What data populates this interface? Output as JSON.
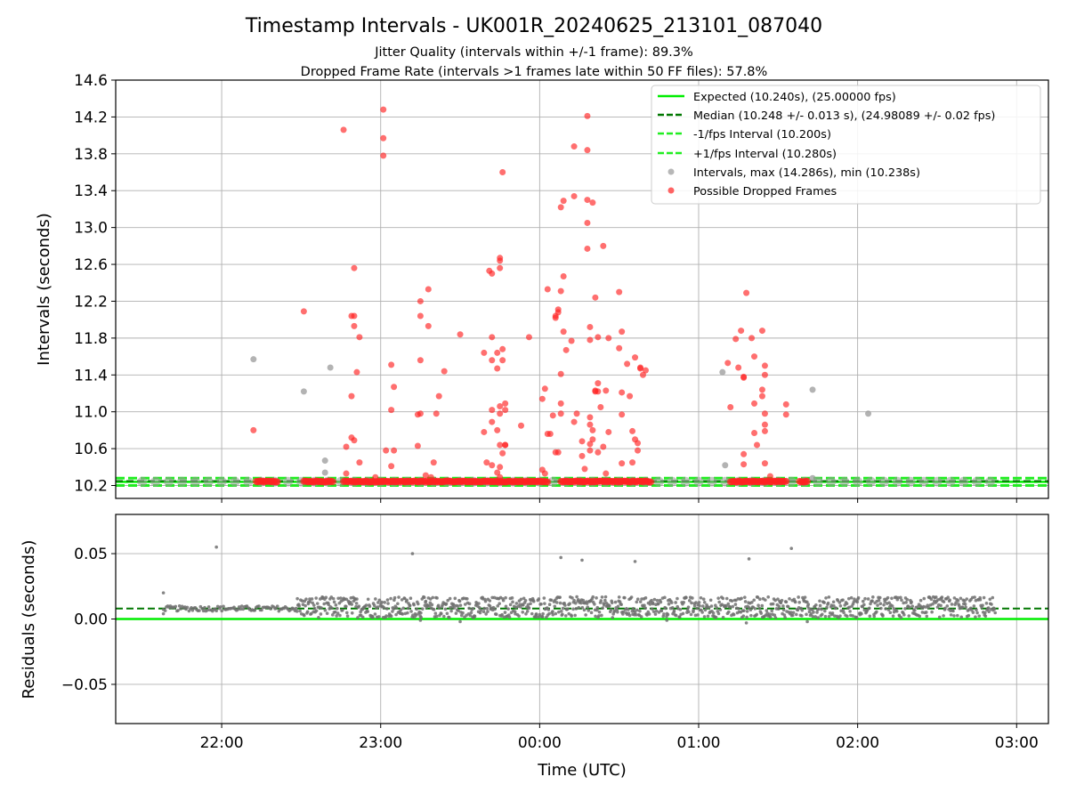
{
  "figure": {
    "title": "Timestamp Intervals - UK001R_20240625_213101_087040",
    "subtitle_jitter": "Jitter Quality (intervals within +/-1 frame): 89.3%",
    "subtitle_dropped": "Dropped Frame Rate (intervals >1 frames late within 50 FF files): 57.8%"
  },
  "colors": {
    "expected": "#00ee00",
    "median": "#007700",
    "fps_interval": "#22ee22",
    "intervals": "#999999",
    "dropped": "#ff2222",
    "residuals": "#707070",
    "grid": "#b0b0b0"
  },
  "chart_data": [
    {
      "type": "scatter",
      "ylabel": "Intervals (seconds)",
      "xlabel": "",
      "grid": true,
      "legend_placement": "top-right",
      "x_range": [
        "21:20",
        "03:12"
      ],
      "ylim": [
        10.06,
        14.6
      ],
      "yticks": [
        "10.2",
        "10.6",
        "11.0",
        "11.4",
        "11.8",
        "12.2",
        "12.6",
        "13.0",
        "13.4",
        "13.8",
        "14.2",
        "14.6"
      ],
      "legend": [
        {
          "key": "expected",
          "label": "Expected (10.240s), (25.00000 fps)",
          "style": "solid",
          "color": "#00ee00"
        },
        {
          "key": "median",
          "label": "Median (10.248 +/- 0.013 s), (24.98089 +/- 0.02 fps)",
          "style": "dashed",
          "color": "#007700"
        },
        {
          "key": "minus",
          "label": "-1/fps Interval (10.200s)",
          "style": "dashed",
          "color": "#22ee22"
        },
        {
          "key": "plus",
          "label": "+1/fps Interval (10.280s)",
          "style": "dashed",
          "color": "#22ee22"
        },
        {
          "key": "intervals",
          "label": "Intervals, max (14.286s), min (10.238s)",
          "style": "marker",
          "color": "#999999"
        },
        {
          "key": "dropped",
          "label": "Possible Dropped Frames",
          "style": "marker",
          "color": "#ff2222"
        }
      ],
      "lines": {
        "expected": 10.24,
        "median": 10.248,
        "minus": 10.2,
        "plus": 10.28
      },
      "series": [
        {
          "name": "Intervals, max (14.286s), min (10.238s)",
          "points": [
            [
              "22:12",
              11.57
            ],
            [
              "22:31",
              11.22
            ],
            [
              "22:39",
              10.47
            ],
            [
              "22:39",
              10.34
            ],
            [
              "22:41",
              11.48
            ],
            [
              "01:09",
              11.43
            ],
            [
              "01:10",
              10.42
            ],
            [
              "01:43",
              11.24
            ],
            [
              "01:43",
              10.28
            ],
            [
              "02:04",
              10.98
            ]
          ],
          "baseline": {
            "from": "21:30",
            "to": "02:53",
            "every_min": 5,
            "value": 10.241
          }
        },
        {
          "name": "Possible Dropped Frames",
          "points": [
            [
              "22:12",
              10.8
            ],
            [
              "22:31",
              12.09
            ],
            [
              "22:46",
              14.06
            ],
            [
              "22:47",
              10.62
            ],
            [
              "22:47",
              10.33
            ],
            [
              "22:49",
              11.17
            ],
            [
              "22:49",
              10.72
            ],
            [
              "22:49",
              12.04
            ],
            [
              "22:50",
              12.56
            ],
            [
              "22:50",
              11.93
            ],
            [
              "22:50",
              12.04
            ],
            [
              "22:50",
              10.69
            ],
            [
              "22:51",
              11.43
            ],
            [
              "22:52",
              11.81
            ],
            [
              "22:52",
              10.45
            ],
            [
              "22:58",
              10.29
            ],
            [
              "23:01",
              14.28
            ],
            [
              "23:01",
              13.97
            ],
            [
              "23:01",
              13.78
            ],
            [
              "23:02",
              10.58
            ],
            [
              "23:04",
              11.51
            ],
            [
              "23:04",
              11.02
            ],
            [
              "23:04",
              10.41
            ],
            [
              "23:05",
              11.27
            ],
            [
              "23:05",
              10.58
            ],
            [
              "23:14",
              10.97
            ],
            [
              "23:14",
              10.63
            ],
            [
              "23:15",
              12.2
            ],
            [
              "23:15",
              12.04
            ],
            [
              "23:15",
              11.56
            ],
            [
              "23:15",
              10.98
            ],
            [
              "23:17",
              10.31
            ],
            [
              "23:18",
              12.33
            ],
            [
              "23:18",
              11.93
            ],
            [
              "23:19",
              10.29
            ],
            [
              "23:20",
              10.45
            ],
            [
              "23:21",
              10.98
            ],
            [
              "23:22",
              11.17
            ],
            [
              "23:24",
              11.44
            ],
            [
              "23:30",
              11.84
            ],
            [
              "23:39",
              11.64
            ],
            [
              "23:39",
              10.78
            ],
            [
              "23:40",
              10.45
            ],
            [
              "23:41",
              12.53
            ],
            [
              "23:42",
              12.5
            ],
            [
              "23:42",
              11.81
            ],
            [
              "23:42",
              11.56
            ],
            [
              "23:42",
              11.02
            ],
            [
              "23:42",
              10.89
            ],
            [
              "23:42",
              10.42
            ],
            [
              "23:44",
              11.64
            ],
            [
              "23:44",
              11.47
            ],
            [
              "23:44",
              10.8
            ],
            [
              "23:44",
              10.34
            ],
            [
              "23:45",
              12.67
            ],
            [
              "23:45",
              12.64
            ],
            [
              "23:45",
              12.56
            ],
            [
              "23:45",
              11.06
            ],
            [
              "23:45",
              10.98
            ],
            [
              "23:45",
              10.64
            ],
            [
              "23:45",
              10.4
            ],
            [
              "23:45",
              10.29
            ],
            [
              "23:46",
              13.6
            ],
            [
              "23:46",
              11.68
            ],
            [
              "23:46",
              11.56
            ],
            [
              "23:46",
              10.55
            ],
            [
              "23:47",
              10.64
            ],
            [
              "23:47",
              11.09
            ],
            [
              "23:47",
              11.02
            ],
            [
              "23:47",
              10.64
            ],
            [
              "23:53",
              10.85
            ],
            [
              "23:56",
              11.81
            ],
            [
              "00:01",
              11.14
            ],
            [
              "00:01",
              10.37
            ],
            [
              "00:02",
              11.25
            ],
            [
              "00:02",
              10.33
            ],
            [
              "00:03",
              12.33
            ],
            [
              "00:03",
              10.76
            ],
            [
              "00:04",
              10.76
            ],
            [
              "00:05",
              10.96
            ],
            [
              "00:06",
              12.04
            ],
            [
              "00:06",
              12.02
            ],
            [
              "00:06",
              10.56
            ],
            [
              "00:07",
              12.11
            ],
            [
              "00:07",
              12.08
            ],
            [
              "00:07",
              10.56
            ],
            [
              "00:08",
              11.09
            ],
            [
              "00:08",
              10.98
            ],
            [
              "00:08",
              13.22
            ],
            [
              "00:08",
              12.31
            ],
            [
              "00:08",
              11.41
            ],
            [
              "00:09",
              13.29
            ],
            [
              "00:09",
              12.47
            ],
            [
              "00:09",
              11.87
            ],
            [
              "00:10",
              11.67
            ],
            [
              "00:12",
              11.77
            ],
            [
              "00:13",
              13.34
            ],
            [
              "00:13",
              13.88
            ],
            [
              "00:13",
              10.89
            ],
            [
              "00:14",
              10.98
            ],
            [
              "00:16",
              10.68
            ],
            [
              "00:16",
              10.52
            ],
            [
              "00:17",
              10.38
            ],
            [
              "00:18",
              13.3
            ],
            [
              "00:18",
              12.77
            ],
            [
              "00:18",
              13.84
            ],
            [
              "00:18",
              14.21
            ],
            [
              "00:18",
              13.05
            ],
            [
              "00:19",
              11.92
            ],
            [
              "00:19",
              10.94
            ],
            [
              "00:19",
              10.65
            ],
            [
              "00:19",
              10.58
            ],
            [
              "00:19",
              11.78
            ],
            [
              "00:19",
              10.86
            ],
            [
              "00:20",
              13.27
            ],
            [
              "00:20",
              10.8
            ],
            [
              "00:20",
              10.7
            ],
            [
              "00:21",
              12.24
            ],
            [
              "00:21",
              11.23
            ],
            [
              "00:21",
              11.22
            ],
            [
              "00:22",
              11.31
            ],
            [
              "00:22",
              11.22
            ],
            [
              "00:22",
              11.81
            ],
            [
              "00:22",
              10.56
            ],
            [
              "00:23",
              11.05
            ],
            [
              "00:24",
              12.8
            ],
            [
              "00:24",
              10.62
            ],
            [
              "00:25",
              11.23
            ],
            [
              "00:25",
              10.33
            ],
            [
              "00:26",
              11.8
            ],
            [
              "00:26",
              10.78
            ],
            [
              "00:30",
              12.3
            ],
            [
              "00:30",
              11.69
            ],
            [
              "00:31",
              11.87
            ],
            [
              "00:31",
              11.21
            ],
            [
              "00:31",
              10.97
            ],
            [
              "00:31",
              10.44
            ],
            [
              "00:33",
              11.52
            ],
            [
              "00:34",
              11.17
            ],
            [
              "00:35",
              10.79
            ],
            [
              "00:35",
              10.45
            ],
            [
              "00:36",
              11.59
            ],
            [
              "00:36",
              10.7
            ],
            [
              "00:37",
              10.66
            ],
            [
              "00:37",
              10.58
            ],
            [
              "00:38",
              11.47
            ],
            [
              "00:38",
              11.48
            ],
            [
              "00:39",
              11.4
            ],
            [
              "00:40",
              11.45
            ],
            [
              "01:11",
              11.53
            ],
            [
              "01:12",
              11.05
            ],
            [
              "01:14",
              11.79
            ],
            [
              "01:15",
              11.48
            ],
            [
              "01:16",
              11.88
            ],
            [
              "01:17",
              11.38
            ],
            [
              "01:17",
              11.37
            ],
            [
              "01:17",
              10.54
            ],
            [
              "01:17",
              10.43
            ],
            [
              "01:18",
              12.29
            ],
            [
              "01:20",
              11.8
            ],
            [
              "01:21",
              11.6
            ],
            [
              "01:21",
              11.09
            ],
            [
              "01:21",
              10.77
            ],
            [
              "01:22",
              10.64
            ],
            [
              "01:24",
              11.88
            ],
            [
              "01:24",
              11.24
            ],
            [
              "01:24",
              11.17
            ],
            [
              "01:25",
              10.44
            ],
            [
              "01:25",
              11.5
            ],
            [
              "01:25",
              11.4
            ],
            [
              "01:25",
              10.98
            ],
            [
              "01:25",
              10.86
            ],
            [
              "01:25",
              10.79
            ],
            [
              "01:27",
              10.3
            ],
            [
              "01:33",
              11.08
            ],
            [
              "01:33",
              10.97
            ]
          ],
          "baseline_ranges": [
            [
              "22:13",
              "22:21"
            ],
            [
              "22:31",
              "22:42"
            ],
            [
              "22:46",
              "00:03"
            ],
            [
              "00:08",
              "00:42"
            ],
            [
              "01:12",
              "01:33"
            ],
            [
              "01:38",
              "01:41"
            ]
          ],
          "baseline_value": 10.243
        }
      ]
    },
    {
      "type": "scatter",
      "ylabel": "Residuals (seconds)",
      "xlabel": "Time (UTC)",
      "grid": true,
      "x_range": [
        "21:20",
        "03:12"
      ],
      "xticks": [
        "22:00",
        "23:00",
        "00:00",
        "01:00",
        "02:00",
        "03:00"
      ],
      "ylim": [
        -0.08,
        0.08
      ],
      "yticks": [
        "−0.05",
        "0.00",
        "0.05"
      ],
      "ytick_values": [
        -0.05,
        0,
        0.05
      ],
      "lines": {
        "expected": 0.0,
        "median": 0.008
      },
      "series": [
        {
          "name": "Residuals",
          "points": [
            [
              "21:58",
              0.055
            ],
            [
              "23:12",
              0.05
            ],
            [
              "00:08",
              0.047
            ],
            [
              "00:16",
              0.045
            ],
            [
              "00:36",
              0.044
            ],
            [
              "01:19",
              0.046
            ],
            [
              "01:35",
              0.054
            ],
            [
              "21:38",
              0.02
            ],
            [
              "21:38",
              0.004
            ],
            [
              "23:15",
              -0.001
            ],
            [
              "23:30",
              -0.002
            ],
            [
              "00:48",
              -0.001
            ],
            [
              "01:18",
              -0.003
            ],
            [
              "01:41",
              -0.002
            ]
          ],
          "bands": [
            {
              "from": "21:38",
              "to": "22:28",
              "min": 0.006,
              "max": 0.01,
              "per_minute": 2
            },
            {
              "from": "22:28",
              "to": "02:52",
              "min": 0.001,
              "max": 0.017,
              "per_minute": 4
            }
          ]
        }
      ]
    }
  ]
}
